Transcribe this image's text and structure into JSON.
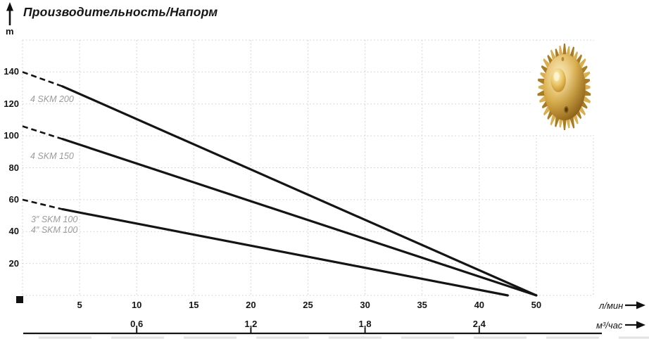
{
  "title": "Производительность/Напорм",
  "y_unit": "m",
  "axis_labels": {
    "flow_lmin": "л/мин",
    "flow_m3h": "м³/час"
  },
  "curve_labels": {
    "skm200": "4 SKM 200",
    "skm150": "4 SKM 150",
    "skm100_3": "3″ SKM 100",
    "skm100_4": "4″ SKM 100"
  },
  "chart_data": {
    "type": "line",
    "title": "Производительность/Напорм",
    "ylabel": "m",
    "xlabel_primary": "л/мин",
    "xlabel_secondary": "м³/час",
    "ylim": [
      0,
      160
    ],
    "grid": true,
    "y_ticks": [
      140,
      120,
      100,
      80,
      60,
      40,
      20
    ],
    "x_ticks_lmin": [
      "5",
      "10",
      "15",
      "20",
      "25",
      "30",
      "35",
      "40",
      "50"
    ],
    "x_ticks_m3h": [
      "0,6",
      "1,2",
      "1,8",
      "2,4"
    ],
    "series": [
      {
        "name": "4 SKM 200",
        "dash_until_lmin": 3.5,
        "points_lmin_m": [
          [
            0,
            140
          ],
          [
            3.5,
            131
          ],
          [
            50,
            0
          ]
        ]
      },
      {
        "name": "4 SKM 150",
        "dash_until_lmin": 3.5,
        "points_lmin_m": [
          [
            0,
            106
          ],
          [
            3.5,
            98
          ],
          [
            50,
            0
          ]
        ]
      },
      {
        "name": "3″ SKM 100 / 4″ SKM 100",
        "dash_until_lmin": 3.5,
        "points_lmin_m": [
          [
            0,
            60
          ],
          [
            3.5,
            54
          ],
          [
            45,
            0
          ]
        ]
      }
    ],
    "colors": {
      "curve": "#141414",
      "grid": "#cfcfcf",
      "curve_label": "#9b9b9b",
      "axis_text": "#161616",
      "impeller_brass": "#d9ae4e"
    }
  }
}
